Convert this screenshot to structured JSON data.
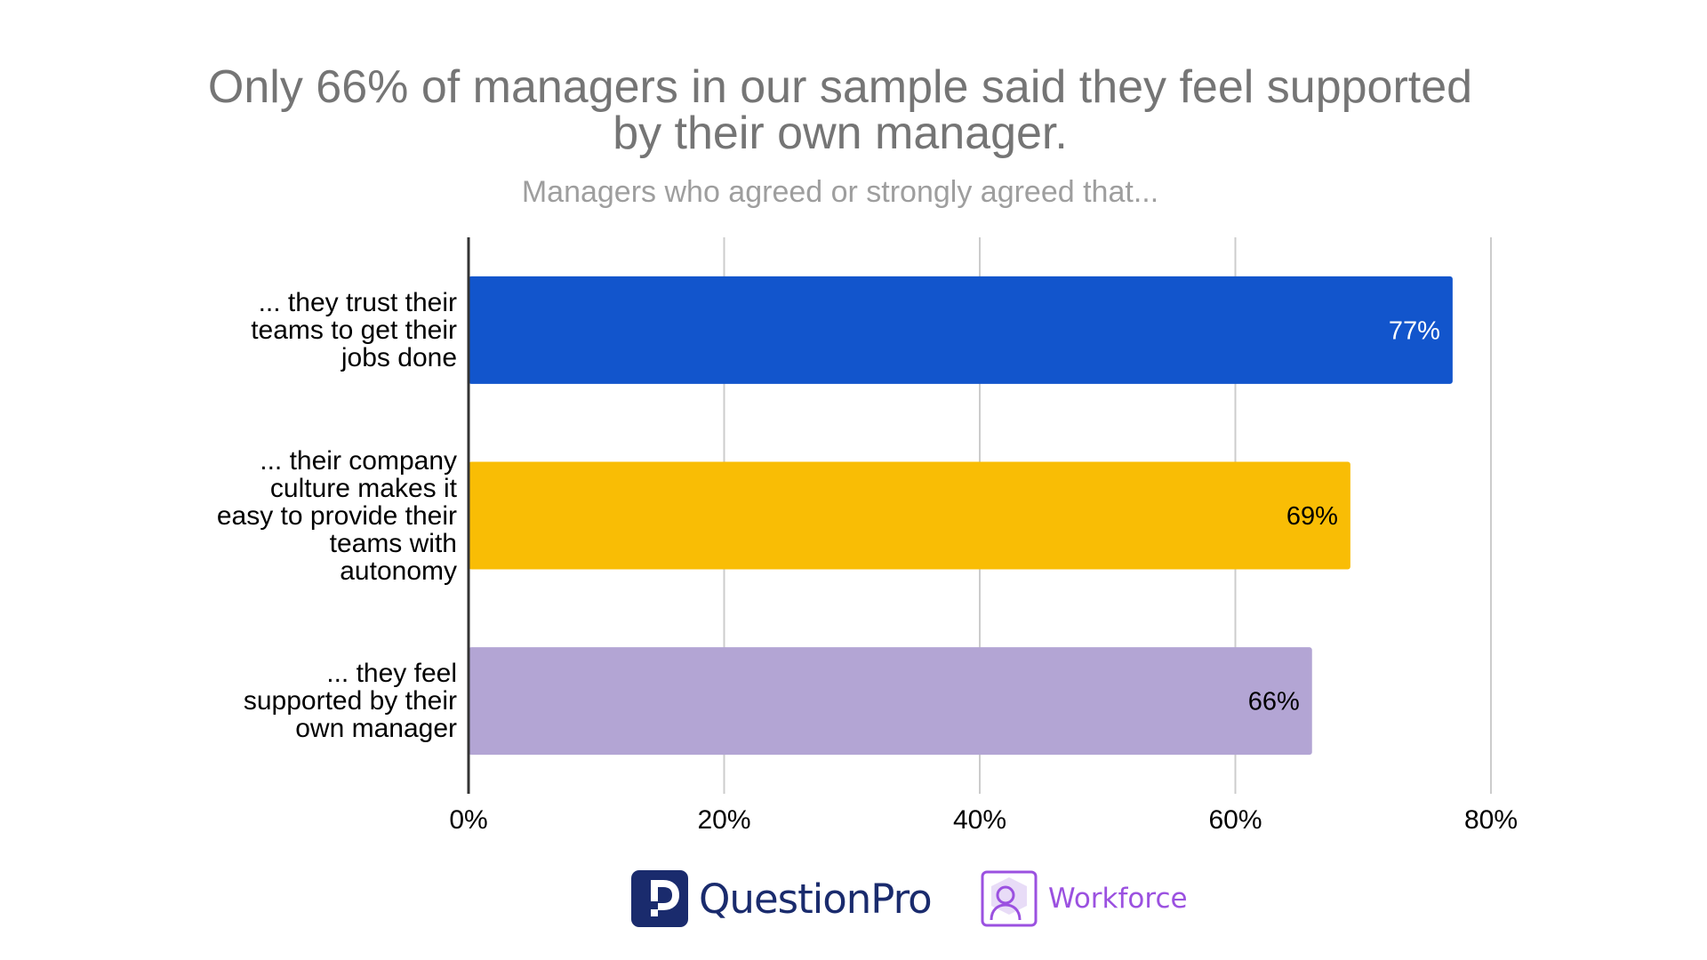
{
  "header": {
    "title_line_1": "Only 66% of managers in our sample said they feel supported",
    "title_line_2": "by their own manager.",
    "subtitle": "Managers who agreed or strongly agreed that..."
  },
  "chart_data": {
    "type": "bar",
    "orientation": "horizontal",
    "title": "Only 66% of managers in our sample said they feel supported by their own manager.",
    "subtitle": "Managers who agreed or strongly agreed that...",
    "categories": [
      "... they trust their teams to get their jobs done",
      "... their company culture makes it easy to provide their teams with autonomy",
      "... they feel supported by their own manager"
    ],
    "category_label_lines": [
      [
        "... they trust their",
        "teams to get their",
        "jobs done"
      ],
      [
        "... their company",
        "culture makes it",
        "easy to provide their",
        "teams with",
        "autonomy"
      ],
      [
        "... they feel",
        "supported by their",
        "own manager"
      ]
    ],
    "values": [
      77,
      69,
      66
    ],
    "data_labels": [
      "77%",
      "69%",
      "66%"
    ],
    "colors": [
      "#1255cc",
      "#f9bd05",
      "#b3a5d4"
    ],
    "label_colors": [
      "#ffffff",
      "#000000",
      "#000000"
    ],
    "xlim": [
      0,
      80
    ],
    "xticks": [
      0,
      20,
      40,
      60,
      80
    ],
    "xtick_labels": [
      "0%",
      "20%",
      "40%",
      "60%",
      "80%"
    ],
    "grid": true,
    "xlabel": "",
    "ylabel": ""
  },
  "footer": {
    "brand_1": "QuestionPro",
    "brand_2": "Workforce",
    "brand_1_icon": "questionpro-logo-icon",
    "brand_2_icon": "workforce-person-icon",
    "brand_1_color": "#1a2b6d",
    "brand_2_color": "#9b51e0"
  }
}
